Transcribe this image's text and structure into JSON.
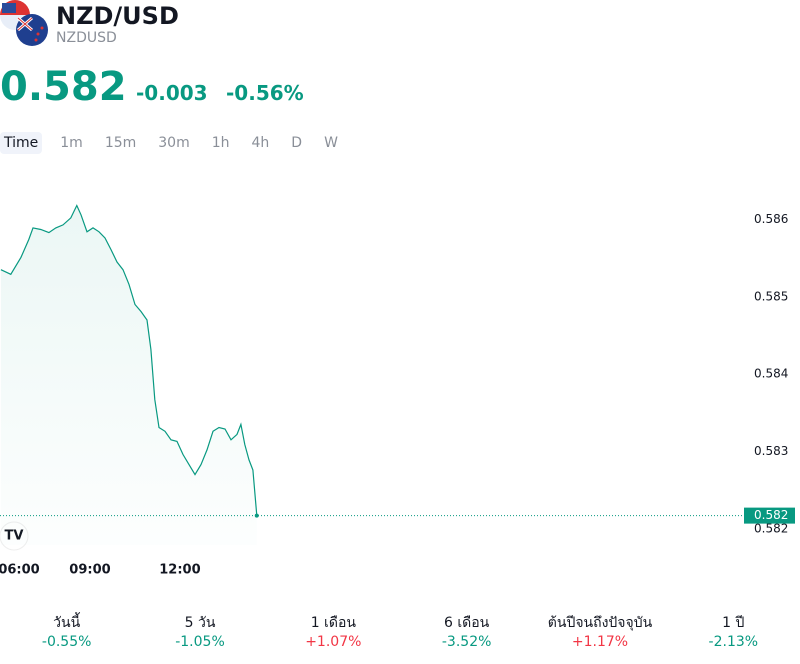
{
  "header": {
    "title": "NZD/USD",
    "ticker": "NZDUSD",
    "price": "0.582",
    "change": "-0.003",
    "change_percent": "-0.56%"
  },
  "tabs": [
    "Time",
    "1m",
    "15m",
    "30m",
    "1h",
    "4h",
    "D",
    "W"
  ],
  "selected_tab": 0,
  "chart_data": {
    "type": "line",
    "color": "#089981",
    "x": [
      6.03,
      6.36,
      6.7,
      6.96,
      7.1,
      7.36,
      7.63,
      7.86,
      8.1,
      8.36,
      8.56,
      8.7,
      8.9,
      9.1,
      9.3,
      9.5,
      9.7,
      9.9,
      10.1,
      10.3,
      10.5,
      10.7,
      10.9,
      11.03,
      11.16,
      11.3,
      11.5,
      11.7,
      11.9,
      12.1,
      12.3,
      12.5,
      12.7,
      12.9,
      13.1,
      13.3,
      13.5,
      13.7,
      13.9,
      14.03,
      14.16,
      14.3,
      14.43,
      14.56
    ],
    "values": [
      0.58535,
      0.58529,
      0.58551,
      0.58574,
      0.58589,
      0.58587,
      0.58583,
      0.58589,
      0.58593,
      0.58602,
      0.58618,
      0.58606,
      0.58584,
      0.58589,
      0.58584,
      0.58576,
      0.58561,
      0.58545,
      0.58535,
      0.58516,
      0.5849,
      0.58481,
      0.5847,
      0.58432,
      0.58367,
      0.58331,
      0.58326,
      0.58315,
      0.58313,
      0.58296,
      0.58283,
      0.5827,
      0.58283,
      0.58302,
      0.58326,
      0.58331,
      0.58329,
      0.58315,
      0.58322,
      0.58335,
      0.58309,
      0.58289,
      0.58276,
      0.58217
    ],
    "xlim": [
      6,
      30.67
    ],
    "xticks": [
      {
        "value": 6,
        "label": "06:00"
      },
      {
        "value": 9,
        "label": "09:00"
      },
      {
        "value": 12,
        "label": "12:00"
      }
    ],
    "ylim": [
      0.58179,
      0.58651
    ],
    "yticks": [
      0.582,
      0.583,
      0.584,
      0.585,
      0.586
    ],
    "last_label": "0.582"
  },
  "performance": [
    {
      "label": "วันนี้",
      "value": "-0.55%",
      "color": "#089981"
    },
    {
      "label": "5 วัน",
      "value": "-1.05%",
      "color": "#089981"
    },
    {
      "label": "1 เดือน",
      "value": "+1.07%",
      "color": "#f23645"
    },
    {
      "label": "6 เดือน",
      "value": "-3.52%",
      "color": "#089981"
    },
    {
      "label": "ต้นปีจนถึงปัจจุบัน",
      "value": "+1.17%",
      "color": "#f23645"
    },
    {
      "label": "1 ปี",
      "value": "-2.13%",
      "color": "#089981"
    }
  ]
}
